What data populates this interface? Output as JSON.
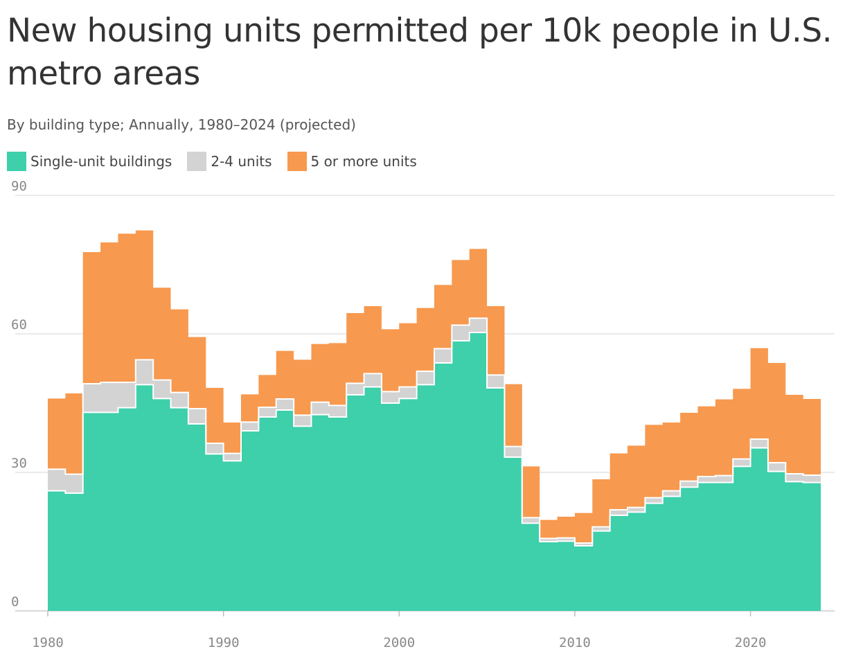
{
  "chart_data": {
    "type": "area",
    "title": "New housing units permitted per 10k people in U.S. metro areas",
    "subtitle": "By building type; Annually, 1980–2024 (projected)",
    "xlabel": "",
    "ylabel": "",
    "x": [
      1980,
      1981,
      1982,
      1983,
      1984,
      1985,
      1986,
      1987,
      1988,
      1989,
      1990,
      1991,
      1992,
      1993,
      1994,
      1995,
      1996,
      1997,
      1998,
      1999,
      2000,
      2001,
      2002,
      2003,
      2004,
      2005,
      2006,
      2007,
      2008,
      2009,
      2010,
      2011,
      2012,
      2013,
      2014,
      2015,
      2016,
      2017,
      2018,
      2019,
      2020,
      2021,
      2022,
      2023
    ],
    "xlim": [
      1980,
      2024
    ],
    "ylim": [
      0,
      90
    ],
    "x_ticks": [
      1980,
      1990,
      2000,
      2010,
      2020
    ],
    "y_ticks": [
      0,
      30,
      60,
      90
    ],
    "x_tick_labels": [
      "1980",
      "1990",
      "2000",
      "2010",
      "2020"
    ],
    "y_tick_labels": [
      "0",
      "30",
      "60",
      "90"
    ],
    "stacked": true,
    "step": true,
    "grid": "horizontal",
    "legend_position": "top-left",
    "series": [
      {
        "name": "Single-unit buildings",
        "color": "#3ecfab",
        "values": [
          26,
          25.5,
          43,
          43,
          44,
          49,
          46,
          44,
          40.5,
          34,
          32.5,
          39,
          42,
          43.5,
          40,
          42.5,
          42,
          46.8,
          48.5,
          45,
          46,
          49,
          53.7,
          58.5,
          60.3,
          48.3,
          33.3,
          19,
          15,
          15.1,
          14.1,
          17.3,
          20.7,
          21.4,
          23.3,
          24.8,
          26.8,
          27.8,
          27.8,
          31.3,
          35.3,
          30.2,
          28,
          27.8
        ]
      },
      {
        "name": "2-4 units",
        "color": "#d3d3d3",
        "values": [
          4.7,
          4.1,
          6.2,
          6.5,
          5.5,
          5.4,
          4,
          3.3,
          3.3,
          2.3,
          1.6,
          1.9,
          2.1,
          2.4,
          2.4,
          2.7,
          2.5,
          2.5,
          2.9,
          2.5,
          2.5,
          2.9,
          3.1,
          3.4,
          3.1,
          2.8,
          2.3,
          1.2,
          0.7,
          0.7,
          0.6,
          0.9,
          1.2,
          1,
          1.2,
          1.2,
          1.3,
          1.3,
          1.5,
          1.6,
          1.9,
          1.9,
          1.7,
          1.6
        ]
      },
      {
        "name": "5 or more units",
        "color": "#f7994f",
        "values": [
          15.3,
          17.5,
          28.5,
          30.3,
          32.2,
          28,
          20,
          18,
          15.5,
          12,
          6.7,
          6,
          7,
          10.4,
          12,
          12.6,
          13.5,
          15.2,
          14.6,
          13.5,
          13.8,
          13.7,
          13.8,
          14.1,
          15,
          14.9,
          13.5,
          11.1,
          4,
          4.6,
          6.5,
          10.3,
          12.2,
          13.4,
          15.8,
          14.8,
          14.8,
          15.2,
          16.5,
          15.2,
          19.7,
          21.6,
          17.1,
          16.5
        ]
      }
    ]
  }
}
